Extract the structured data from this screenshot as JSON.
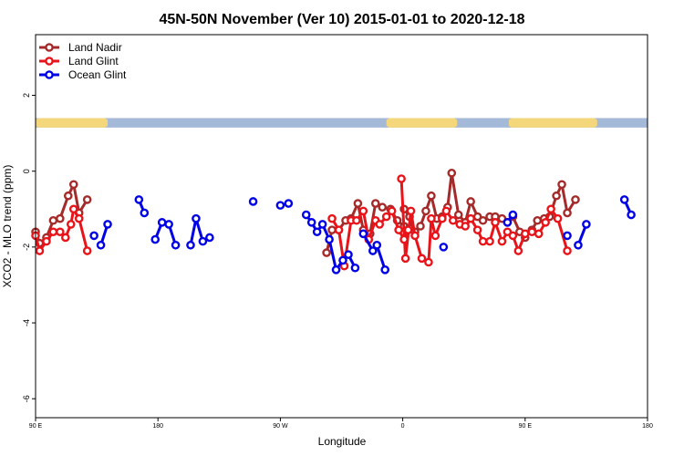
{
  "chart_data": {
    "type": "line",
    "title": "45N-50N November (Ver 10)   2015-01-01 to 2020-12-18",
    "xlabel": "Longitude",
    "ylabel": "XCO2 - MLO trend (ppm)",
    "xlim": [
      90,
      540
    ],
    "ylim": [
      -6.5,
      3.6
    ],
    "x_ticks": [
      {
        "value": 90,
        "label": "90 E"
      },
      {
        "value": 180,
        "label": "180"
      },
      {
        "value": 270,
        "label": "90 W"
      },
      {
        "value": 360,
        "label": "0"
      },
      {
        "value": 450,
        "label": "90 E"
      },
      {
        "value": 540,
        "label": "180"
      }
    ],
    "y_ticks": [
      {
        "value": 2,
        "label": "2"
      },
      {
        "value": 0,
        "label": "0"
      },
      {
        "value": -2,
        "label": "-2"
      },
      {
        "value": -4,
        "label": "-4"
      },
      {
        "value": -6,
        "label": "-6"
      }
    ],
    "land_band": {
      "y_range": [
        1.15,
        1.4
      ],
      "ocean_color": "#a4b8d8",
      "land_color": "#f4d77a",
      "land_segments": [
        [
          90,
          143
        ],
        [
          348,
          400
        ],
        [
          438,
          503
        ]
      ]
    },
    "legend_position": "top-left",
    "series": [
      {
        "name": "Land Nadir",
        "color": "#a52a2a",
        "segments": [
          [
            [
              90,
              -1.6
            ],
            [
              93,
              -1.9
            ],
            [
              98,
              -1.75
            ],
            [
              103,
              -1.3
            ],
            [
              108,
              -1.25
            ],
            [
              114,
              -0.65
            ],
            [
              118,
              -0.35
            ],
            [
              122,
              -1.1
            ],
            [
              128,
              -0.75
            ]
          ],
          [
            [
              304,
              -2.15
            ],
            [
              308,
              -1.55
            ],
            [
              313,
              -1.55
            ],
            [
              318,
              -1.3
            ],
            [
              322,
              -1.25
            ],
            [
              327,
              -0.85
            ],
            [
              331,
              -1.55
            ],
            [
              336,
              -1.65
            ],
            [
              340,
              -0.85
            ],
            [
              345,
              -0.95
            ],
            [
              351,
              -1.0
            ],
            [
              356,
              -1.3
            ],
            [
              361,
              -1.45
            ],
            [
              365,
              -1.5
            ]
          ],
          [
            [
              361,
              -1.0
            ],
            [
              365,
              -1.2
            ],
            [
              369,
              -1.6
            ],
            [
              373,
              -1.45
            ],
            [
              377,
              -1.05
            ],
            [
              381,
              -0.65
            ],
            [
              385,
              -1.25
            ],
            [
              389,
              -1.2
            ],
            [
              393,
              -0.95
            ],
            [
              396,
              -0.05
            ],
            [
              401,
              -1.15
            ],
            [
              406,
              -1.35
            ],
            [
              410,
              -0.8
            ],
            [
              415,
              -1.2
            ],
            [
              419,
              -1.3
            ],
            [
              424,
              -1.2
            ],
            [
              428,
              -1.2
            ],
            [
              433,
              -1.25
            ],
            [
              437,
              -1.35
            ],
            [
              441,
              -1.2
            ],
            [
              446,
              -1.6
            ],
            [
              450,
              -1.75
            ],
            [
              455,
              -1.55
            ],
            [
              459,
              -1.3
            ],
            [
              464,
              -1.25
            ],
            [
              468,
              -1.2
            ],
            [
              473,
              -0.65
            ],
            [
              477,
              -0.35
            ],
            [
              481,
              -1.1
            ],
            [
              487,
              -0.75
            ]
          ]
        ]
      },
      {
        "name": "Land Glint",
        "color": "#e8141a",
        "segments": [
          [
            [
              90,
              -1.7
            ],
            [
              93,
              -2.1
            ],
            [
              98,
              -1.85
            ],
            [
              103,
              -1.6
            ],
            [
              108,
              -1.6
            ],
            [
              112,
              -1.75
            ],
            [
              116,
              -1.4
            ],
            [
              118,
              -1.0
            ],
            [
              122,
              -1.25
            ],
            [
              128,
              -2.1
            ]
          ],
          [
            [
              308,
              -1.25
            ],
            [
              313,
              -1.55
            ],
            [
              317,
              -2.5
            ],
            [
              322,
              -1.3
            ],
            [
              326,
              -1.3
            ],
            [
              331,
              -1.05
            ],
            [
              335,
              -1.8
            ],
            [
              340,
              -1.3
            ],
            [
              343,
              -1.4
            ],
            [
              348,
              -1.2
            ],
            [
              352,
              -1.05
            ],
            [
              357,
              -1.55
            ],
            [
              361,
              -1.8
            ],
            [
              364,
              -1.55
            ]
          ],
          [
            [
              359,
              -0.2
            ],
            [
              362,
              -2.3
            ],
            [
              366,
              -1.05
            ],
            [
              369,
              -1.7
            ],
            [
              374,
              -2.3
            ],
            [
              379,
              -2.4
            ],
            [
              381,
              -1.25
            ],
            [
              384,
              -1.7
            ],
            [
              389,
              -1.25
            ],
            [
              392,
              -1.05
            ],
            [
              397,
              -1.3
            ],
            [
              402,
              -1.4
            ],
            [
              406,
              -1.45
            ],
            [
              410,
              -1.25
            ],
            [
              415,
              -1.55
            ],
            [
              419,
              -1.85
            ],
            [
              424,
              -1.85
            ],
            [
              428,
              -1.35
            ],
            [
              433,
              -1.85
            ],
            [
              437,
              -1.6
            ],
            [
              441,
              -1.7
            ],
            [
              445,
              -2.1
            ],
            [
              450,
              -1.65
            ],
            [
              455,
              -1.6
            ],
            [
              460,
              -1.65
            ],
            [
              465,
              -1.35
            ],
            [
              469,
              -1.0
            ],
            [
              474,
              -1.25
            ],
            [
              481,
              -2.1
            ]
          ]
        ]
      },
      {
        "name": "Ocean Glint",
        "color": "#0000e6",
        "segments": [
          [
            [
              133,
              -1.7
            ]
          ],
          [
            [
              138,
              -1.95
            ],
            [
              143,
              -1.4
            ]
          ],
          [
            [
              166,
              -0.75
            ],
            [
              170,
              -1.1
            ]
          ],
          [
            [
              178,
              -1.8
            ],
            [
              183,
              -1.35
            ],
            [
              188,
              -1.4
            ],
            [
              193,
              -1.95
            ]
          ],
          [
            [
              204,
              -1.95
            ],
            [
              208,
              -1.25
            ],
            [
              213,
              -1.85
            ],
            [
              218,
              -1.75
            ]
          ],
          [
            [
              250,
              -0.8
            ]
          ],
          [
            [
              270,
              -0.9
            ],
            [
              276,
              -0.85
            ]
          ],
          [
            [
              289,
              -1.15
            ],
            [
              293,
              -1.35
            ],
            [
              297,
              -1.6
            ],
            [
              301,
              -1.4
            ],
            [
              306,
              -1.8
            ],
            [
              311,
              -2.6
            ],
            [
              316,
              -2.35
            ],
            [
              320,
              -2.2
            ],
            [
              325,
              -2.55
            ]
          ],
          [
            [
              331,
              -1.65
            ],
            [
              338,
              -2.1
            ],
            [
              341,
              -1.95
            ],
            [
              347,
              -2.6
            ]
          ],
          [
            [
              390,
              -2.0
            ]
          ],
          [
            [
              437,
              -1.35
            ],
            [
              441,
              -1.15
            ]
          ],
          [
            [
              481,
              -1.7
            ]
          ],
          [
            [
              489,
              -1.95
            ],
            [
              495,
              -1.4
            ]
          ],
          [
            [
              523,
              -0.75
            ],
            [
              528,
              -1.15
            ]
          ]
        ]
      }
    ]
  }
}
